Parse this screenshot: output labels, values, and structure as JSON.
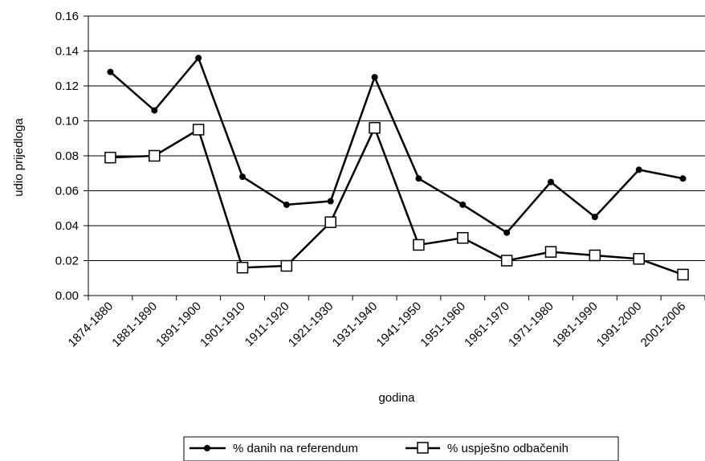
{
  "chart_data": {
    "type": "line",
    "xlabel": "godina",
    "ylabel": "udio prijedloga",
    "ylim": [
      0,
      0.16
    ],
    "yticks": [
      "0.00",
      "0.02",
      "0.04",
      "0.06",
      "0.08",
      "0.10",
      "0.12",
      "0.14",
      "0.16"
    ],
    "grid": "horizontal",
    "legend": "bottom",
    "categories": [
      "1874-1880",
      "1881-1890",
      "1891-1900",
      "1901-1910",
      "1911-1920",
      "1921-1930",
      "1931-1940",
      "1941-1950",
      "1951-1960",
      "1961-1970",
      "1971-1980",
      "1981-1990",
      "1991-2000",
      "2001-2006"
    ],
    "series": [
      {
        "name": "% danih na referendum",
        "marker": "filled-circle",
        "values": [
          0.128,
          0.106,
          0.136,
          0.068,
          0.052,
          0.054,
          0.125,
          0.067,
          0.052,
          0.036,
          0.065,
          0.045,
          0.072,
          0.067
        ]
      },
      {
        "name": "% uspješno odbačenih",
        "marker": "open-square",
        "values": [
          0.079,
          0.08,
          0.095,
          0.016,
          0.017,
          0.042,
          0.096,
          0.029,
          0.033,
          0.02,
          0.025,
          0.023,
          0.021,
          0.012
        ]
      }
    ]
  }
}
